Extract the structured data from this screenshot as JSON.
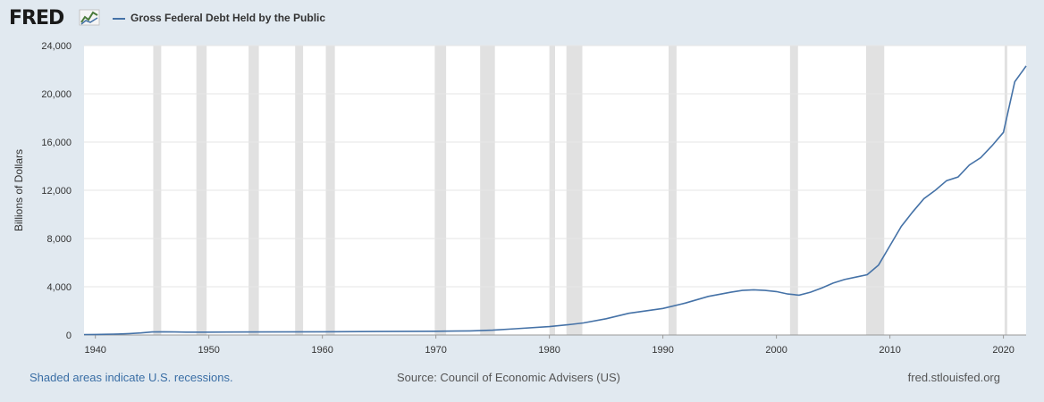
{
  "logo": {
    "text": "FRED"
  },
  "legend": {
    "label": "Gross Federal Debt Held by the Public"
  },
  "footer": {
    "recession_note": "Shaded areas indicate U.S. recessions.",
    "source": "Source: Council of Economic Advisers (US)",
    "site": "fred.stlouisfed.org"
  },
  "colors": {
    "line": "#4572a7",
    "recession": "#e1e1e1",
    "grid": "#e6e6e6",
    "background": "#e1e9f0",
    "plot_background": "#ffffff"
  },
  "chart_data": {
    "type": "line",
    "title": "",
    "xlabel": "",
    "ylabel": "Billions of Dollars",
    "xlim": [
      1939,
      2022
    ],
    "ylim": [
      0,
      24000
    ],
    "x_ticks": [
      1940,
      1950,
      1960,
      1970,
      1980,
      1990,
      2000,
      2010,
      2020
    ],
    "y_ticks": [
      0,
      4000,
      8000,
      12000,
      16000,
      20000,
      24000
    ],
    "y_tick_labels": [
      "0",
      "4,000",
      "8,000",
      "12,000",
      "16,000",
      "20,000",
      "24,000"
    ],
    "grid": true,
    "legend_position": "top-left",
    "recessions": [
      [
        1945.1,
        1945.8
      ],
      [
        1948.9,
        1949.8
      ],
      [
        1953.5,
        1954.4
      ],
      [
        1957.6,
        1958.3
      ],
      [
        1960.3,
        1961.1
      ],
      [
        1969.9,
        1970.9
      ],
      [
        1973.9,
        1975.2
      ],
      [
        1980.0,
        1980.5
      ],
      [
        1981.5,
        1982.9
      ],
      [
        1990.5,
        1991.2
      ],
      [
        2001.2,
        2001.9
      ],
      [
        2007.9,
        2009.5
      ],
      [
        2020.1,
        2020.3
      ]
    ],
    "series": [
      {
        "name": "Gross Federal Debt Held by the Public",
        "x": [
          1939,
          1940,
          1941,
          1942,
          1943,
          1944,
          1945,
          1946,
          1947,
          1948,
          1949,
          1950,
          1955,
          1960,
          1965,
          1970,
          1973,
          1975,
          1977,
          1980,
          1982,
          1983,
          1985,
          1987,
          1990,
          1992,
          1994,
          1996,
          1997,
          1998,
          1999,
          2000,
          2001,
          2002,
          2003,
          2004,
          2005,
          2006,
          2007,
          2008,
          2009,
          2010,
          2011,
          2012,
          2013,
          2014,
          2015,
          2016,
          2017,
          2018,
          2019,
          2020,
          2021,
          2022
        ],
        "y": [
          40,
          45,
          60,
          80,
          120,
          170,
          250,
          270,
          250,
          240,
          240,
          240,
          250,
          270,
          290,
          310,
          340,
          400,
          520,
          700,
          890,
          1000,
          1350,
          1800,
          2200,
          2650,
          3200,
          3550,
          3700,
          3750,
          3700,
          3600,
          3400,
          3300,
          3550,
          3900,
          4300,
          4600,
          4800,
          5000,
          5800,
          7400,
          9000,
          10200,
          11300,
          12000,
          12800,
          13100,
          14100,
          14700,
          15700,
          16800,
          21000,
          22300
        ]
      }
    ]
  }
}
